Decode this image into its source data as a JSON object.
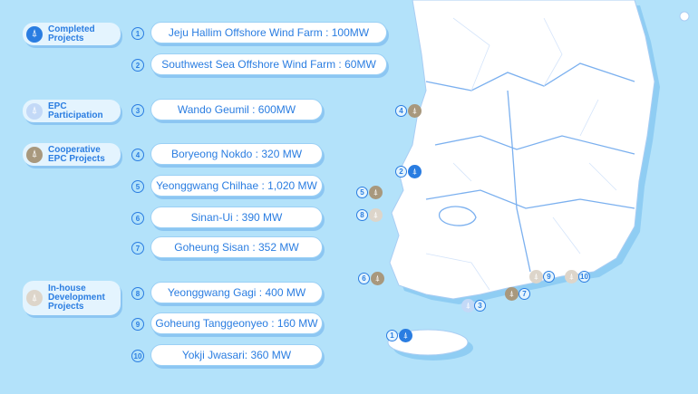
{
  "colors": {
    "background": "#b3e2fa",
    "text": "#2a7de1",
    "completed": "#2a7de1",
    "epc": "#c3d9f7",
    "cooperative": "#a8987d",
    "inhouse": "#ddd5ca"
  },
  "categories": [
    {
      "label": "Completed Projects",
      "icon": "wind-turbine-icon",
      "color": "#2a7de1"
    },
    {
      "label": "EPC Participation",
      "icon": "wind-turbine-icon",
      "color": "#c3d9f7"
    },
    {
      "label": "Cooperative EPC Projects",
      "icon": "wind-turbine-icon",
      "color": "#a8987d"
    },
    {
      "label": "In-house Development Projects",
      "icon": "wind-turbine-icon",
      "color": "#ddd5ca"
    }
  ],
  "projects": [
    {
      "num": "1",
      "label": "Jeju Hallim Offshore Wind Farm : 100MW"
    },
    {
      "num": "2",
      "label": "Southwest Sea Offshore Wind Farm : 60MW"
    },
    {
      "num": "3",
      "label": "Wando Geumil : 600MW"
    },
    {
      "num": "4",
      "label": "Boryeong Nokdo : 320 MW"
    },
    {
      "num": "5",
      "label": "Yeonggwang Chilhae : 1,020 MW"
    },
    {
      "num": "6",
      "label": "Sinan-Ui : 390 MW"
    },
    {
      "num": "7",
      "label": "Goheung Sisan : 352 MW"
    },
    {
      "num": "8",
      "label": "Yeonggwang Gagi : 400 MW"
    },
    {
      "num": "9",
      "label": "Goheung Tanggeonyeo : 160 MW"
    },
    {
      "num": "10",
      "label": "Yokji Jwasari: 360 MW"
    }
  ],
  "turbine_glyph": "⍋"
}
